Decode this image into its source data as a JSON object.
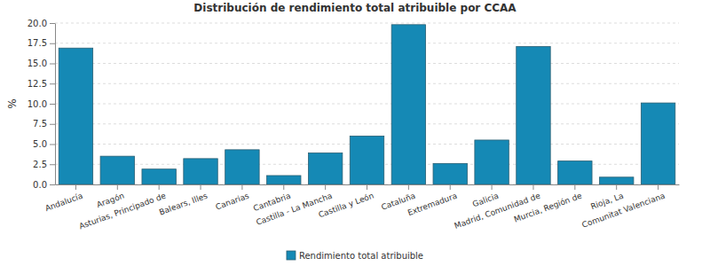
{
  "chart_data": {
    "type": "bar",
    "title": "Distribución de rendimiento total atribuible por CCAA",
    "y_label": "%",
    "categories": [
      "Andalucía",
      "Aragón",
      "Asturias, Principado de",
      "Balears, Illes",
      "Canarias",
      "Cantabria",
      "Castilla - La Mancha",
      "Castilla y León",
      "Cataluña",
      "Extremadura",
      "Galicia",
      "Madrid, Comunidad de",
      "Murcia, Región de",
      "Rioja, La",
      "Comunitat Valenciana"
    ],
    "series": [
      {
        "name": "Rendimiento total atribuible",
        "color": "#1589b5",
        "values": [
          16.9,
          3.5,
          1.9,
          3.2,
          4.3,
          1.1,
          3.9,
          6.0,
          19.8,
          2.6,
          5.5,
          17.1,
          2.9,
          0.9,
          10.1
        ]
      }
    ],
    "ylim": [
      0,
      20
    ],
    "yticks": [
      {
        "value": 0,
        "label": "0.0"
      },
      2.5,
      {
        "value": 5,
        "label": "5.0"
      },
      7.5,
      {
        "value": 10,
        "label": "10.0"
      },
      12.5,
      {
        "value": 15,
        "label": "15.0"
      },
      17.5,
      {
        "value": 20,
        "label": "20.0"
      }
    ],
    "grid": true,
    "legend": "bottom"
  }
}
